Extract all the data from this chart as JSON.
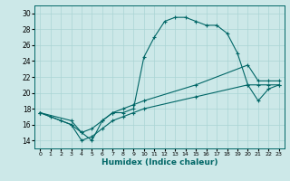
{
  "xlabel": "Humidex (Indice chaleur)",
  "bg_color": "#cce8e8",
  "grid_color": "#aad4d4",
  "line_color": "#006666",
  "xlim": [
    -0.5,
    23.5
  ],
  "ylim": [
    13,
    31
  ],
  "xticks": [
    0,
    1,
    2,
    3,
    4,
    5,
    6,
    7,
    8,
    9,
    10,
    11,
    12,
    13,
    14,
    15,
    16,
    17,
    18,
    19,
    20,
    21,
    22,
    23
  ],
  "yticks": [
    14,
    16,
    18,
    20,
    22,
    24,
    26,
    28,
    30
  ],
  "series1_x": [
    0,
    1,
    2,
    3,
    4,
    5,
    6,
    7,
    8,
    9,
    10,
    11,
    12,
    13,
    14,
    15,
    16,
    17,
    18,
    19,
    20,
    21,
    22,
    23
  ],
  "series1_y": [
    17.5,
    17.0,
    16.5,
    16.0,
    15.0,
    14.0,
    16.5,
    17.5,
    17.5,
    18.0,
    24.5,
    27.0,
    29.0,
    29.5,
    29.5,
    29.0,
    28.5,
    28.5,
    27.5,
    25.0,
    21.0,
    21.0,
    21.0,
    21.0
  ],
  "series2_x": [
    0,
    3,
    4,
    5,
    6,
    7,
    8,
    9,
    10,
    15,
    20,
    21,
    22,
    23
  ],
  "series2_y": [
    17.5,
    16.5,
    15.0,
    15.5,
    16.5,
    17.5,
    18.0,
    18.5,
    19.0,
    21.0,
    23.5,
    21.5,
    21.5,
    21.5
  ],
  "series3_x": [
    0,
    3,
    4,
    5,
    6,
    7,
    8,
    9,
    10,
    15,
    20,
    21,
    22,
    23
  ],
  "series3_y": [
    17.5,
    16.0,
    14.0,
    14.5,
    15.5,
    16.5,
    17.0,
    17.5,
    18.0,
    19.5,
    21.0,
    19.0,
    20.5,
    21.0
  ]
}
